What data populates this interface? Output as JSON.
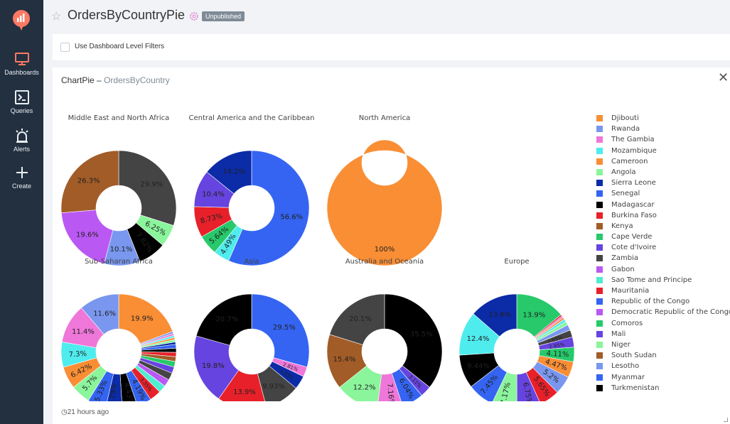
{
  "sidebar": {
    "items": [
      {
        "label": "Dashboards",
        "icon": "monitor-icon",
        "active": true
      },
      {
        "label": "Queries",
        "icon": "terminal-icon"
      },
      {
        "label": "Alerts",
        "icon": "alarm-icon"
      },
      {
        "label": "Create",
        "icon": "plus-icon"
      }
    ]
  },
  "header": {
    "title": "OrdersByCountryPie",
    "badge": "Unpublished"
  },
  "filters": {
    "label": "Use Dashboard Level Filters"
  },
  "panel": {
    "viz_name": "ChartPie",
    "separator": "–",
    "query_name": "OrdersByCountry",
    "updated": "21 hours ago"
  },
  "colors": {
    "sidebar_bg": "#23303f",
    "badge_bg": "#7f8b96"
  },
  "legend": [
    {
      "name": "Djibouti",
      "color": "#f98e35"
    },
    {
      "name": "Rwanda",
      "color": "#7997ee"
    },
    {
      "name": "The Gambia",
      "color": "#ef77d9"
    },
    {
      "name": "Mozambique",
      "color": "#4fecee"
    },
    {
      "name": "Cameroon",
      "color": "#f98e35"
    },
    {
      "name": "Angola",
      "color": "#8bf59c"
    },
    {
      "name": "Sierra Leone",
      "color": "#0b2ba7"
    },
    {
      "name": "Senegal",
      "color": "#3464f1"
    },
    {
      "name": "Madagascar",
      "color": "#000000"
    },
    {
      "name": "Burkina Faso",
      "color": "#e8202a"
    },
    {
      "name": "Kenya",
      "color": "#a25c28"
    },
    {
      "name": "Cape Verde",
      "color": "#27c96a"
    },
    {
      "name": "Cote d'Ivoire",
      "color": "#6644df"
    },
    {
      "name": "Zambia",
      "color": "#444444"
    },
    {
      "name": "Gabon",
      "color": "#ba58f3"
    },
    {
      "name": "Sao Tome and Principe",
      "color": "#4fecd1"
    },
    {
      "name": "Mauritania",
      "color": "#e8202a"
    },
    {
      "name": "Republic of the Congo",
      "color": "#3464f1"
    },
    {
      "name": "Democratic Republic of the Congo",
      "color": "#ba58f3"
    },
    {
      "name": "Comoros",
      "color": "#27c96a"
    },
    {
      "name": "Mali",
      "color": "#6644df"
    },
    {
      "name": "Niger",
      "color": "#8bf59c"
    },
    {
      "name": "South Sudan",
      "color": "#a25c28"
    },
    {
      "name": "Lesotho",
      "color": "#7997ee"
    },
    {
      "name": "Myanmar",
      "color": "#3464f1"
    },
    {
      "name": "Turkmenistan",
      "color": "#000000"
    },
    {
      "name": "",
      "color": "#6644df"
    }
  ],
  "chart_data": [
    {
      "type": "pie",
      "title": "Middle East and North Africa",
      "slices": [
        {
          "value": 29.9,
          "label": "29.9%",
          "color": "#444444"
        },
        {
          "value": 6.25,
          "label": "6.25%",
          "color": "#8bf59c"
        },
        {
          "value": 7.82,
          "label": "7.82%",
          "color": "#000000"
        },
        {
          "value": 10.1,
          "label": "10.1%",
          "color": "#7997ee"
        },
        {
          "value": 19.6,
          "label": "19.6%",
          "color": "#ba58f3"
        },
        {
          "value": 26.3,
          "label": "26.3%",
          "color": "#a25c28"
        }
      ]
    },
    {
      "type": "pie",
      "title": "Central America and the Caribbean",
      "slices": [
        {
          "value": 56.6,
          "label": "56.6%",
          "color": "#3464f1"
        },
        {
          "value": 4.49,
          "label": "4.49%",
          "color": "#4fecee"
        },
        {
          "value": 5.64,
          "label": "5.64%",
          "color": "#27c96a"
        },
        {
          "value": 8.73,
          "label": "8.73%",
          "color": "#e8202a"
        },
        {
          "value": 10.4,
          "label": "10.4%",
          "color": "#6644df"
        },
        {
          "value": 14.2,
          "label": "14.2%",
          "color": "#0b2ba7"
        }
      ]
    },
    {
      "type": "pie",
      "title": "North America",
      "slices": [
        {
          "value": 100,
          "label": "100%",
          "color": "#f98e35"
        }
      ]
    },
    {
      "type": "pie",
      "title": "Sub-Saharan Africa",
      "slices": [
        {
          "value": 19.9,
          "label": "19.9%",
          "color": "#f98e35"
        },
        {
          "value": 0.6,
          "label": "",
          "color": "#7997ee"
        },
        {
          "value": 0.6,
          "label": "",
          "color": "#ef77d9"
        },
        {
          "value": 0.6,
          "label": "",
          "color": "#4fecee"
        },
        {
          "value": 0.6,
          "label": "",
          "color": "#f98e35"
        },
        {
          "value": 0.7,
          "label": "",
          "color": "#8bf59c"
        },
        {
          "value": 0.7,
          "label": "",
          "color": "#0b2ba7"
        },
        {
          "value": 1.1,
          "label": "",
          "color": "#3464f1"
        },
        {
          "value": 1.2,
          "label": "",
          "color": "#000000"
        },
        {
          "value": 1.24,
          "label": "",
          "color": "#e8202a"
        },
        {
          "value": 1.4,
          "label": "",
          "color": "#a25c28"
        },
        {
          "value": 1.6,
          "label": "",
          "color": "#27c96a"
        },
        {
          "value": 1.85,
          "label": "",
          "color": "#6644df"
        },
        {
          "value": 2.11,
          "label": "",
          "color": "#444444"
        },
        {
          "value": 2.11,
          "label": "",
          "color": "#ba58f3"
        },
        {
          "value": 2.21,
          "label": "",
          "color": "#4fecd1"
        },
        {
          "value": 3.35,
          "label": "3.35%",
          "color": "#e8202a"
        },
        {
          "value": 4.19,
          "label": "4.19%",
          "color": "#3464f1"
        },
        {
          "value": 4.43,
          "label": "4.43%",
          "color": "#000000"
        },
        {
          "value": 4.79,
          "label": "4.79%",
          "color": "#0b2ba7"
        },
        {
          "value": 5.33,
          "label": "5.33%",
          "color": "#3464f1"
        },
        {
          "value": 5.7,
          "label": "5.7%",
          "color": "#8bf59c"
        },
        {
          "value": 6.42,
          "label": "6.42%",
          "color": "#f98e35"
        },
        {
          "value": 7.3,
          "label": "7.3%",
          "color": "#4fecee"
        },
        {
          "value": 11.4,
          "label": "11.4%",
          "color": "#ef77d9"
        },
        {
          "value": 11.6,
          "label": "11.6%",
          "color": "#7997ee"
        }
      ]
    },
    {
      "type": "pie",
      "title": "Asia",
      "slices": [
        {
          "value": 29.5,
          "label": "29.5%",
          "color": "#3464f1"
        },
        {
          "value": 2.81,
          "label": "2.81%",
          "color": "#ef77d9"
        },
        {
          "value": 3.85,
          "label": "3.85%",
          "color": "#0b2ba7"
        },
        {
          "value": 9.93,
          "label": "9.93%",
          "color": "#444444"
        },
        {
          "value": 13.9,
          "label": "13.9%",
          "color": "#e8202a"
        },
        {
          "value": 19.8,
          "label": "19.8%",
          "color": "#6644df"
        },
        {
          "value": 20.7,
          "label": "20.7%",
          "color": "#000000"
        }
      ]
    },
    {
      "type": "pie",
      "title": "Australia and Oceania",
      "slices": [
        {
          "value": 35.5,
          "label": "35.5%",
          "color": "#000000"
        },
        {
          "value": 3.11,
          "label": "3.11%",
          "color": "#6644df"
        },
        {
          "value": 6.04,
          "label": "6.04%",
          "color": "#3464f1"
        },
        {
          "value": 7.16,
          "label": "7.16%",
          "color": "#ef77d9"
        },
        {
          "value": 12.2,
          "label": "12.2%",
          "color": "#8bf59c"
        },
        {
          "value": 15.4,
          "label": "15.4%",
          "color": "#a25c28"
        },
        {
          "value": 20.1,
          "label": "20.1%",
          "color": "#444444"
        }
      ]
    },
    {
      "type": "pie",
      "title": "Europe",
      "slices": [
        {
          "value": 13.9,
          "label": "13.9%",
          "color": "#27c96a"
        },
        {
          "value": 0.5,
          "label": "",
          "color": "#e8202a"
        },
        {
          "value": 0.5,
          "label": "",
          "color": "#ef77d9"
        },
        {
          "value": 0.6,
          "label": "",
          "color": "#f98e35"
        },
        {
          "value": 0.8,
          "label": "",
          "color": "#4fecee"
        },
        {
          "value": 1.0,
          "label": "",
          "color": "#8bf59c"
        },
        {
          "value": 1.6,
          "label": "",
          "color": "#7997ee"
        },
        {
          "value": 2.03,
          "label": "2.03%",
          "color": "#444444"
        },
        {
          "value": 2.85,
          "label": "2.85%",
          "color": "#6644df"
        },
        {
          "value": 4.11,
          "label": "4.11%",
          "color": "#27c96a"
        },
        {
          "value": 4.47,
          "label": "4.47%",
          "color": "#f98e35"
        },
        {
          "value": 5.2,
          "label": "5.2%",
          "color": "#7997ee"
        },
        {
          "value": 5.65,
          "label": "5.65%",
          "color": "#e8202a"
        },
        {
          "value": 6.75,
          "label": "6.75%",
          "color": "#6644df"
        },
        {
          "value": 7.17,
          "label": "7.17%",
          "color": "#8bf59c"
        },
        {
          "value": 7.45,
          "label": "7.45%",
          "color": "#3464f1"
        },
        {
          "value": 9.44,
          "label": "9.44%",
          "color": "#000000"
        },
        {
          "value": 12.4,
          "label": "12.4%",
          "color": "#4fecee"
        },
        {
          "value": 13.6,
          "label": "13.6%",
          "color": "#0b2ba7"
        }
      ]
    }
  ]
}
